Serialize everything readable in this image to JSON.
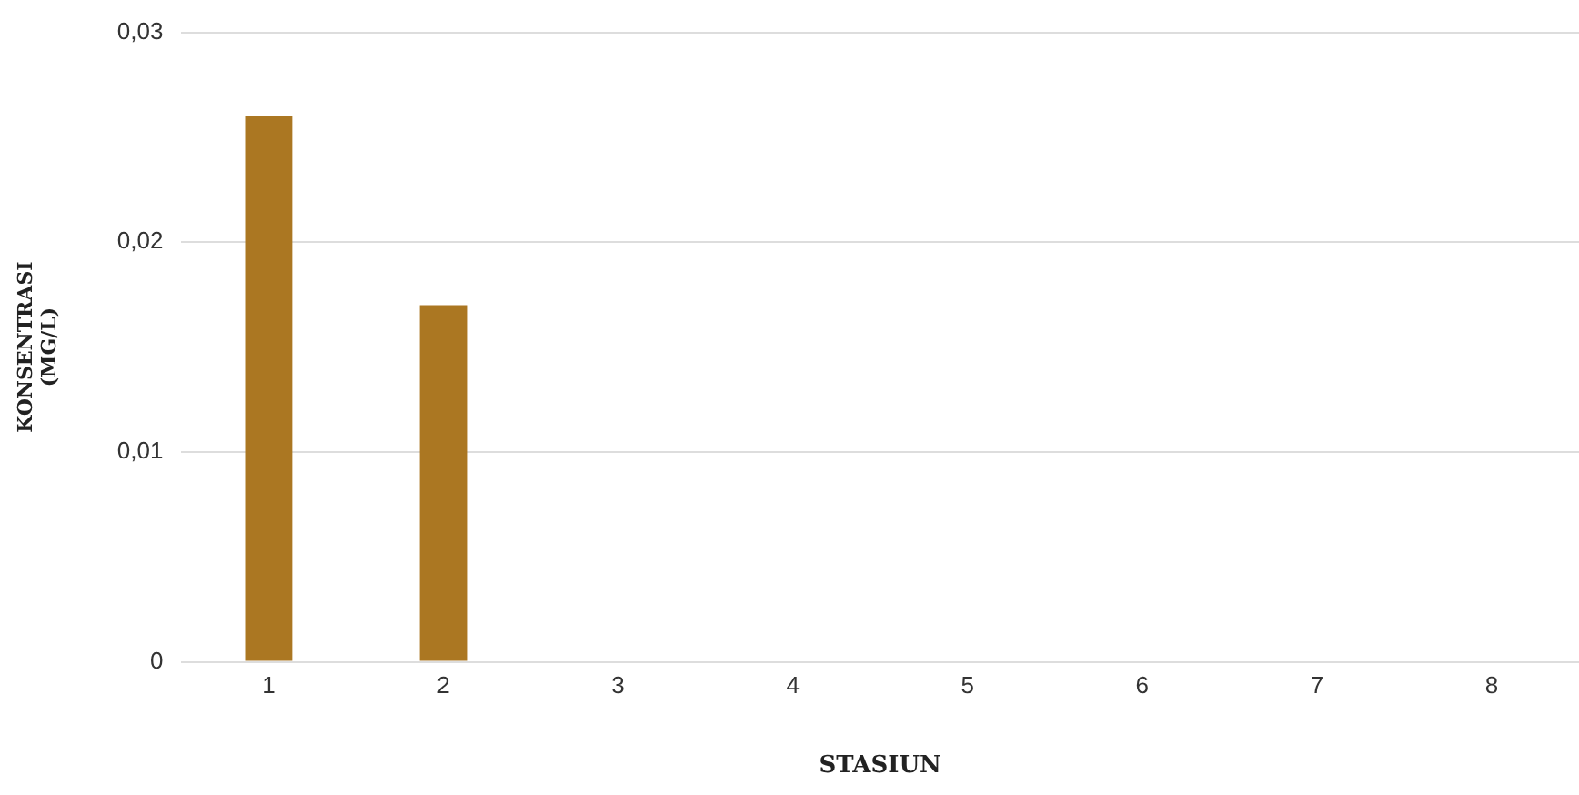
{
  "chart_data": {
    "type": "bar",
    "xlabel": "STASIUN",
    "ylabel": "KONSENTRASI (MG/L)",
    "categories": [
      "1",
      "2",
      "3",
      "4",
      "5",
      "6",
      "7",
      "8"
    ],
    "values": [
      0.026,
      0.017,
      0,
      0,
      0,
      0,
      0,
      0
    ],
    "color": "#ab7722",
    "ylim": [
      0,
      0.03
    ],
    "yticks": [
      0,
      {
        "value": 0.01,
        "label": "0,01"
      },
      {
        "value": 0.02,
        "label": "0,02"
      },
      {
        "value": 0.03,
        "label": "0,03"
      }
    ],
    "grid": "y",
    "legend": false
  }
}
